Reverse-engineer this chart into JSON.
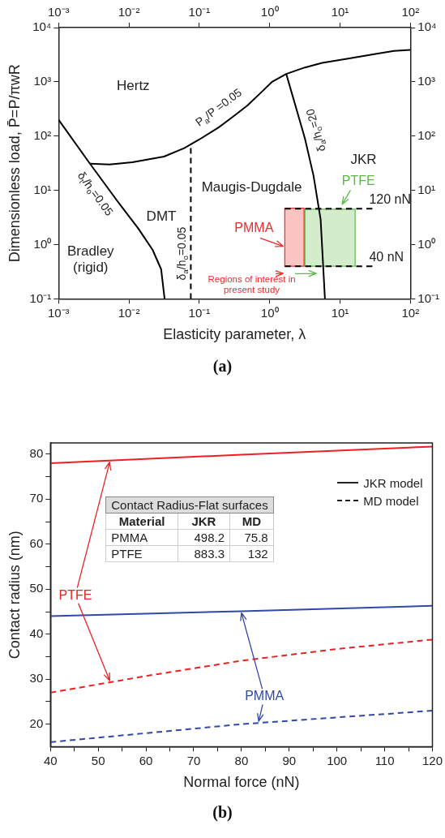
{
  "chart_data": [
    {
      "type": "line",
      "title": "(a)",
      "xlabel": "Elasticity parameter, λ",
      "ylabel": "Dimensionless load, P̄=P/πwR",
      "log": "xy",
      "grid": false,
      "xlim": [
        0.001,
        100
      ],
      "xticks": [
        {
          "value": 0.001,
          "label": "10⁻³"
        },
        {
          "value": 0.01,
          "label": "10⁻²"
        },
        {
          "value": 0.1,
          "label": "10⁻¹"
        },
        {
          "value": 1,
          "label": "10⁰"
        },
        {
          "value": 10,
          "label": "10¹"
        },
        {
          "value": 100,
          "label": "10²"
        }
      ],
      "ylim": [
        0.1,
        10000
      ],
      "yticks": [
        {
          "value": 0.1,
          "label": "10⁻¹"
        },
        {
          "value": 1,
          "label": "10⁰"
        },
        {
          "value": 10,
          "label": "10¹"
        },
        {
          "value": 100,
          "label": "10²"
        },
        {
          "value": 1000,
          "label": "10³"
        },
        {
          "value": 10000,
          "label": "10⁴"
        }
      ],
      "series": [
        {
          "color": "#000000",
          "x": [
            0.00279,
            0.00528,
            0.0112,
            0.0315,
            0.061,
            0.0975,
            0.188,
            0.302,
            0.483,
            0.773,
            1.07,
            1.72,
            3.17,
            5.57,
            13,
            33.2,
            58.5,
            100
          ],
          "values": [
            31,
            30,
            33,
            42,
            60,
            85,
            144,
            229,
            366,
            656,
            990,
            1400,
            1840,
            2240,
            2670,
            3300,
            3710,
            3880
          ]
        },
        {
          "color": "#000000",
          "x": [
            0.001,
            0.00279,
            0.007,
            0.0135,
            0.0217,
            0.0287,
            0.0321
          ],
          "values": [
            200,
            31,
            6.1,
            2,
            0.8,
            0.35,
            0.1
          ]
        },
        {
          "color": "#000000",
          "line_style": "dashed",
          "x": [
            0.0757,
            0.0757
          ],
          "values": [
            0.1,
            60
          ]
        },
        {
          "color": "#000000",
          "x": [
            1.72,
            3.17,
            4.2,
            5.3,
            6.1
          ],
          "values": [
            1400,
            90,
            18.6,
            2.9,
            0.1
          ]
        },
        {
          "name": "120 nN",
          "color": "#000000",
          "line_style": "dashed",
          "x": [
            1.64,
            28.8
          ],
          "values": [
            4.6,
            4.6
          ]
        },
        {
          "name": "40 nN",
          "color": "#000000",
          "line_style": "dashed",
          "x": [
            1.64,
            28.8
          ],
          "values": [
            0.4,
            0.4
          ]
        },
        {
          "name": "PMMA",
          "type": "area",
          "color": "#ee2b2b",
          "x": [
            1.64,
            3.08,
            3.08,
            1.64,
            1.64
          ],
          "values": [
            4.7,
            4.7,
            0.4,
            0.4,
            4.7
          ]
        },
        {
          "name": "PTFE",
          "type": "area",
          "color": "#5cb947",
          "x": [
            3.17,
            16.4,
            16.4,
            3.17,
            3.17
          ],
          "values": [
            4.5,
            4.5,
            0.4,
            0.4,
            4.5
          ]
        }
      ],
      "annotations": [
        "Hertz",
        "JKR",
        "Maugis-Dugdale",
        "DMT",
        "Bradley\n(rigid)",
        "P$_{a}$/P =0.05",
        "δ$_{t}$/h$_{o}$=0.05",
        "δ$_{a}$/h$_{o}$=0.05",
        "δ$_{a}$/h$_{o}$=20",
        "Regions of interest in\npresent study"
      ]
    },
    {
      "type": "line",
      "title": "(b)",
      "xlabel": "Normal force (nN)",
      "ylabel": "Contact radius (nm)",
      "grid": false,
      "xlim": [
        40,
        120
      ],
      "xticks": [
        40,
        {
          "value": 45,
          "label": null
        },
        50,
        {
          "value": 55,
          "label": null
        },
        60,
        {
          "value": 65,
          "label": null
        },
        70,
        {
          "value": 75,
          "label": null
        },
        80,
        {
          "value": 85,
          "label": null
        },
        90,
        {
          "value": 95,
          "label": null
        },
        100,
        {
          "value": 105,
          "label": null
        },
        110,
        {
          "value": 115,
          "label": null
        },
        120
      ],
      "ylim": [
        15,
        82.5
      ],
      "yticks": [
        20,
        {
          "value": 25,
          "label": null
        },
        30,
        {
          "value": 35,
          "label": null
        },
        40,
        {
          "value": 45,
          "label": null
        },
        50,
        {
          "value": 55,
          "label": null
        },
        60,
        {
          "value": 65,
          "label": null
        },
        70,
        {
          "value": 75,
          "label": null
        },
        80
      ],
      "series": [
        {
          "name": "PTFE",
          "color": "#ed2024",
          "x": [
            40,
            80,
            120
          ],
          "values": [
            78,
            79.9,
            81.7
          ]
        },
        {
          "color": "#ed2024",
          "line_style": "dashed",
          "x": [
            40,
            60,
            80,
            100,
            120
          ],
          "values": [
            27,
            30.7,
            34.1,
            36.7,
            38.8
          ]
        },
        {
          "name": "PMMA",
          "color": "#3048a8",
          "x": [
            40,
            80,
            120
          ],
          "values": [
            44,
            45.1,
            46.3
          ]
        },
        {
          "color": "#3048a8",
          "line_style": "dashed",
          "x": [
            40,
            60,
            80,
            100,
            120
          ],
          "values": [
            16,
            18,
            20,
            21.5,
            23
          ]
        }
      ],
      "annotations": [
        "JKR model",
        "MD model",
        "Contact Radius-Flat surfaces",
        "Material",
        "JKR",
        "MD",
        "PMMA",
        "498.2",
        "75.8",
        "PTFE",
        "883.3",
        "132"
      ]
    }
  ]
}
